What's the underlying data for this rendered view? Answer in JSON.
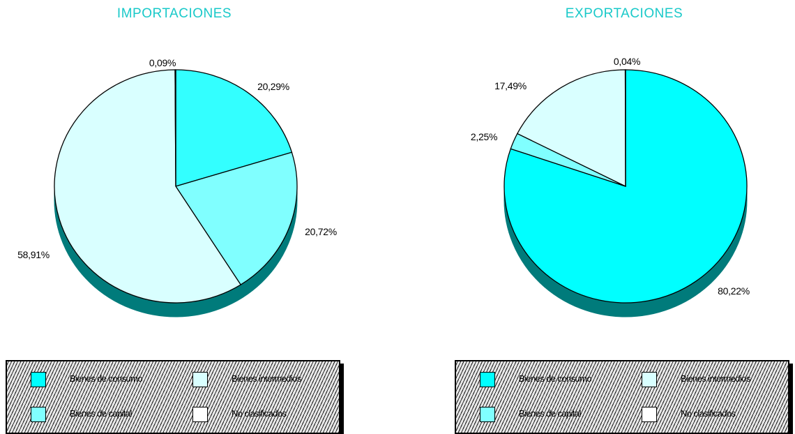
{
  "chart_data": [
    {
      "type": "pie",
      "title": "IMPORTACIONES",
      "categories": [
        "Bienes de consumo",
        "Bienes de capital",
        "Bienes intermedios",
        "No clasificados"
      ],
      "values": [
        20.29,
        20.72,
        58.91,
        0.09
      ],
      "labels": [
        "20,29%",
        "20,72%",
        "58,91%",
        "0,09%"
      ],
      "colors": [
        "#33ffff",
        "#80ffff",
        "#d9ffff",
        "#ffffff"
      ],
      "legend": [
        "Bienes de consumo",
        "Bienes intermedios",
        "Bienes de capital",
        "No clasificados"
      ]
    },
    {
      "type": "pie",
      "title": "EXPORTACIONES",
      "categories": [
        "Bienes de consumo",
        "Bienes de capital",
        "Bienes intermedios",
        "No clasificados"
      ],
      "values": [
        80.22,
        2.25,
        17.49,
        0.04
      ],
      "labels": [
        "80,22%",
        "2,25%",
        "17,49%",
        "0,04%"
      ],
      "colors": [
        "#00ffff",
        "#80ffff",
        "#d9ffff",
        "#ffffff"
      ],
      "legend": [
        "Bienes de consumo",
        "Bienes intermedios",
        "Bienes de capital",
        "No clasificados"
      ]
    }
  ],
  "legend_colors": [
    "#00ffff",
    "#d9ffff",
    "#80ffff",
    "#ffffff"
  ],
  "title_color": "#19c9c9",
  "pie_side_color": "#007b7b",
  "legend_background": "hatched"
}
